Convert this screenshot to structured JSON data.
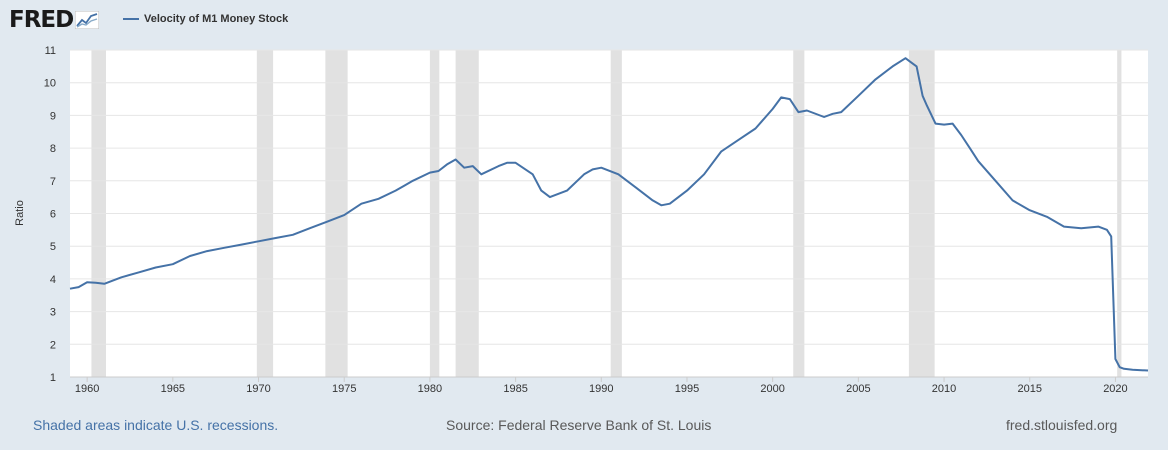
{
  "header": {
    "logo_text": "FRED",
    "logo_icon": "line-graph-icon",
    "legend_label": "Velocity of M1 Money Stock",
    "legend_color": "#4572a7"
  },
  "footer": {
    "recession_note": "Shaded areas indicate U.S. recessions.",
    "source": "Source: Federal Reserve Bank of St. Louis",
    "site": "fred.stlouisfed.org"
  },
  "chart_data": {
    "type": "line",
    "title": "",
    "xlabel": "",
    "ylabel": "Ratio",
    "xlim": [
      1959,
      2021.9
    ],
    "ylim": [
      1,
      11
    ],
    "grid": "horizontal",
    "legend_position": "top-left",
    "line_color": "#4572a7",
    "recession_color": "#e1e1e1",
    "xticks": [
      1960,
      1965,
      1970,
      1975,
      1980,
      1985,
      1990,
      1995,
      2000,
      2005,
      2010,
      2015,
      2020
    ],
    "yticks": [
      1,
      2,
      3,
      4,
      5,
      6,
      7,
      8,
      9,
      10,
      11
    ],
    "recessions": [
      [
        1960.25,
        1961.1
      ],
      [
        1969.9,
        1970.85
      ],
      [
        1973.9,
        1975.2
      ],
      [
        1980.0,
        1980.55
      ],
      [
        1981.5,
        1982.85
      ],
      [
        1990.55,
        1991.2
      ],
      [
        2001.2,
        2001.85
      ],
      [
        2007.95,
        2009.45
      ],
      [
        2020.1,
        2020.35
      ]
    ],
    "series": [
      {
        "x": [
          1959.0,
          1959.5,
          1960.0,
          1960.5,
          1961.0,
          1962.0,
          1963.0,
          1964.0,
          1965.0,
          1966.0,
          1967.0,
          1968.0,
          1969.0,
          1970.0,
          1971.0,
          1972.0,
          1973.0,
          1974.0,
          1975.0,
          1976.0,
          1977.0,
          1978.0,
          1978.5,
          1979.0,
          1980.0,
          1980.5,
          1981.0,
          1981.5,
          1982.0,
          1982.5,
          1983.0,
          1984.0,
          1984.5,
          1985.0,
          1986.0,
          1986.5,
          1987.0,
          1988.0,
          1989.0,
          1989.5,
          1990.0,
          1991.0,
          1992.0,
          1993.0,
          1993.5,
          1994.0,
          1995.0,
          1996.0,
          1997.0,
          1998.0,
          1999.0,
          2000.0,
          2000.5,
          2001.0,
          2001.5,
          2002.0,
          2003.0,
          2003.5,
          2004.0,
          2005.0,
          2006.0,
          2007.0,
          2007.75,
          2008.0,
          2008.4,
          2008.75,
          2009.0,
          2009.5,
          2010.0,
          2010.5,
          2011.0,
          2011.5,
          2012.0,
          2013.0,
          2014.0,
          2015.0,
          2016.0,
          2017.0,
          2018.0,
          2019.0,
          2019.5,
          2019.75,
          2020.0,
          2020.25,
          2020.5,
          2021.0,
          2021.9
        ],
        "values": [
          3.7,
          3.75,
          3.9,
          3.88,
          3.85,
          4.05,
          4.2,
          4.35,
          4.45,
          4.7,
          4.85,
          4.95,
          5.05,
          5.15,
          5.25,
          5.35,
          5.55,
          5.75,
          5.95,
          6.3,
          6.45,
          6.7,
          6.85,
          7.0,
          7.25,
          7.3,
          7.5,
          7.65,
          7.4,
          7.45,
          7.2,
          7.45,
          7.55,
          7.55,
          7.2,
          6.7,
          6.5,
          6.7,
          7.2,
          7.35,
          7.4,
          7.2,
          6.8,
          6.4,
          6.25,
          6.3,
          6.7,
          7.2,
          7.9,
          8.25,
          8.6,
          9.2,
          9.55,
          9.5,
          9.1,
          9.15,
          8.95,
          9.05,
          9.1,
          9.6,
          10.1,
          10.5,
          10.75,
          10.65,
          10.5,
          9.6,
          9.3,
          8.75,
          8.72,
          8.75,
          8.4,
          8.0,
          7.6,
          7.0,
          6.4,
          6.1,
          5.9,
          5.6,
          5.55,
          5.6,
          5.5,
          5.3,
          1.55,
          1.3,
          1.25,
          1.22,
          1.2
        ]
      }
    ]
  }
}
